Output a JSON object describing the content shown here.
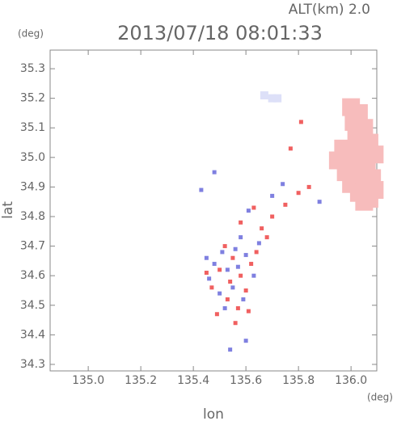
{
  "chart_data": {
    "type": "scatter",
    "title": "2013/07/18 08:01:33",
    "subtitle": "ALT(km) 2.0",
    "x_label": "lon",
    "y_label": "lat",
    "x_unit": "(deg)",
    "y_unit": "(deg)",
    "xlim": [
      134.855,
      136.098
    ],
    "ylim": [
      34.278,
      35.363
    ],
    "xticks": [
      {
        "value": 135,
        "label": "135.0"
      },
      135.2,
      135.4,
      135.6,
      135.8,
      {
        "value": 136,
        "label": "136.0"
      }
    ],
    "yticks": [
      34.3,
      34.4,
      34.5,
      34.6,
      34.7,
      34.8,
      34.9,
      {
        "value": 35,
        "label": "35.0"
      },
      35.1,
      35.2,
      35.3
    ],
    "series": [
      {
        "color": "#f7bcbc",
        "x": [
          136.0,
          136.03,
          136.01,
          136.05,
          136.02,
          136.07,
          135.97,
          136.03,
          136.09,
          135.95,
          136.0,
          136.06,
          135.98,
          136.03,
          136.08,
          136.0,
          136.05,
          136.09,
          136.03,
          136.07,
          136.05
        ],
        "y": [
          35.17,
          35.15,
          35.12,
          35.1,
          35.07,
          35.05,
          35.03,
          35.02,
          35.01,
          34.99,
          34.98,
          34.97,
          34.95,
          34.94,
          34.93,
          34.91,
          34.9,
          34.89,
          34.88,
          34.86,
          34.85
        ]
      },
      {
        "color": "#dde0f8",
        "x": [
          135.67,
          135.7,
          135.72
        ],
        "y": [
          35.21,
          35.2,
          35.2
        ]
      },
      {
        "color": "#f06060",
        "x": [
          135.52,
          135.55,
          135.5,
          135.58,
          135.62,
          135.54,
          135.47,
          135.6,
          135.53,
          135.57,
          135.49,
          135.61,
          135.56,
          135.64,
          135.66,
          135.7,
          135.75,
          135.8,
          135.84,
          135.58,
          135.45,
          135.68,
          135.77,
          135.81,
          135.63
        ],
        "y": [
          34.7,
          34.66,
          34.62,
          34.6,
          34.64,
          34.58,
          34.56,
          34.55,
          34.52,
          34.49,
          34.47,
          34.48,
          34.44,
          34.68,
          34.76,
          34.8,
          34.84,
          34.88,
          34.9,
          34.78,
          34.61,
          34.73,
          35.03,
          35.12,
          34.83
        ]
      },
      {
        "color": "#7f80e0",
        "x": [
          135.51,
          135.56,
          135.48,
          135.6,
          135.53,
          135.57,
          135.46,
          135.55,
          135.63,
          135.5,
          135.59,
          135.52,
          135.45,
          135.58,
          135.65,
          135.7,
          135.48,
          135.61,
          135.54,
          135.6,
          135.74,
          135.88,
          135.43
        ],
        "y": [
          34.68,
          34.69,
          34.64,
          34.67,
          34.62,
          34.63,
          34.59,
          34.56,
          34.6,
          34.54,
          34.52,
          34.49,
          34.66,
          34.73,
          34.71,
          34.87,
          34.95,
          34.82,
          34.35,
          34.38,
          34.91,
          34.85,
          34.89
        ]
      }
    ]
  }
}
